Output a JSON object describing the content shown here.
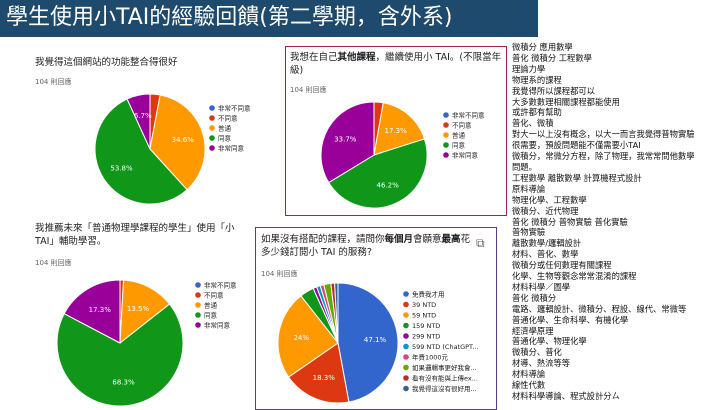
{
  "title": "學生使用小TAI的經驗回饋(第二學期，含外系)",
  "colors": {
    "blue": "#3366cc",
    "red": "#dc3912",
    "orange": "#ff9900",
    "green": "#109618",
    "purple": "#990099",
    "teal": "#0099c6",
    "pink": "#dd4477",
    "lime": "#66aa00",
    "crimson": "#b82e2e",
    "navy": "#316395"
  },
  "chart_data": [
    {
      "type": "pie",
      "question": "我覺得這個網站的功能整合得很好",
      "responses": "104 則回應",
      "legend": [
        "非常不同意",
        "不同意",
        "普通",
        "同意",
        "非常同意"
      ],
      "values": [
        0.0,
        2.9,
        34.6,
        53.8,
        6.7
      ],
      "labels": [
        "",
        "",
        "34.6%",
        "53.8%",
        "6.7%"
      ]
    },
    {
      "type": "pie",
      "question": "我想在自己其他課程，繼續使用小 TAI。(不限當年級)",
      "question_pre": "我想在自己",
      "question_bold": "其他課程",
      "question_post": "，繼續使用小 TAI。(不限當年級)",
      "responses": "104 則回應",
      "legend": [
        "非常不同意",
        "不同意",
        "普通",
        "同意",
        "非常同意"
      ],
      "values": [
        0.0,
        2.8,
        17.3,
        46.2,
        33.7
      ],
      "labels": [
        "",
        "",
        "17.3%",
        "46.2%",
        "33.7%"
      ]
    },
    {
      "type": "pie",
      "question": "我推薦未來「普通物理學課程的學生」使用「小TAI」輔助學習。",
      "responses": "104 則回應",
      "legend": [
        "非常不同意",
        "不同意",
        "普通",
        "同意",
        "非常同意"
      ],
      "values": [
        0.0,
        0.9,
        13.5,
        68.3,
        17.3
      ],
      "labels": [
        "",
        "",
        "13.5%",
        "68.3%",
        "17.3%"
      ]
    },
    {
      "type": "pie",
      "question": "如果沒有搭配的課程，請問你每個月會願意最高花多少錢訂閱小 TAI 的服務?",
      "question_pre": "如果沒有搭配的課程，請問你",
      "question_bold1": "每個月",
      "question_mid": "會願意",
      "question_bold2": "最高",
      "question_post": "花多少錢訂閱小 TAI 的服務?",
      "responses": "104 則回應",
      "legend": [
        "免費我才用",
        "39 NTD",
        "59 NTD",
        "159 NTD",
        "299 NTD",
        "599 NTD (ChatGPT...",
        "年費1000元",
        "如果邏輯事更好我會...",
        "看有沒有能與上傳ex...",
        "我覺得這沒有很好用..."
      ],
      "values": [
        47.1,
        18.3,
        24.0,
        3.8,
        1.0,
        1.0,
        1.0,
        1.9,
        1.0,
        0.9
      ],
      "labels": [
        "47.1%",
        "18.3%",
        "24%",
        "",
        "",
        "",
        "",
        "",
        "",
        ""
      ]
    }
  ],
  "notes": [
    "微積分 應用數學",
    "普化 微積分 工程數學",
    "理論力學",
    "物理系的課程",
    "我覺得所以課程都可以",
    "大多數數理相關課程都能使用",
    "或許都有幫助",
    "普化、微積",
    "對大一以上沒有概念，以大一而言我覺得普物實驗",
    "很需要，預設問題能不僅需要小TAI",
    "微積分，常微分方程，除了物理，我常常問他數學",
    "問題。",
    "工程數學 離散數學 計算機程式設計",
    "原料導論",
    "物理化學、工程數學",
    "微積分、近代物理",
    "普化 微積分 普物實驗 普化實驗",
    "普物實驗",
    "離散數學/邏輯設計",
    "材料、普化、數學",
    "微積分或任何數理有關課程",
    "化學、生物等觀念常常混淆的課程",
    "材料科學／圖學",
    "普化 微積分",
    "電路、邏輯設計、微積分、程設、線代、常微等",
    "普通化學、生命科學、有機化學",
    "經濟學原理",
    "普通化學、物理化學",
    "微積分、普化",
    "材導、熱流等等",
    "材料導論",
    "線性代數",
    "材料科學導論、程式設計分ㄙ"
  ]
}
